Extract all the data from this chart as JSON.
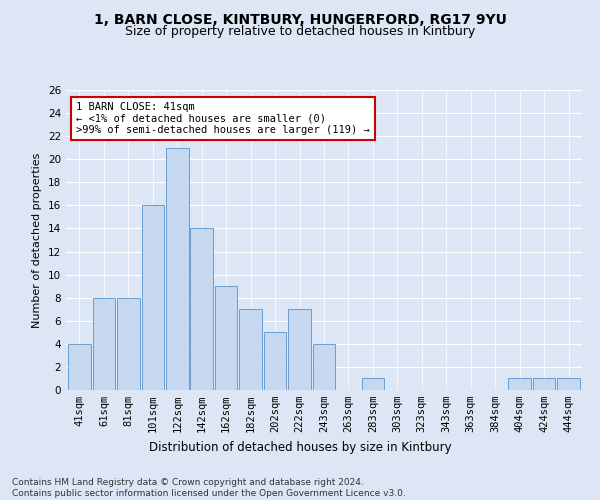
{
  "title1": "1, BARN CLOSE, KINTBURY, HUNGERFORD, RG17 9YU",
  "title2": "Size of property relative to detached houses in Kintbury",
  "xlabel": "Distribution of detached houses by size in Kintbury",
  "ylabel": "Number of detached properties",
  "categories": [
    "41sqm",
    "61sqm",
    "81sqm",
    "101sqm",
    "122sqm",
    "142sqm",
    "162sqm",
    "182sqm",
    "202sqm",
    "222sqm",
    "243sqm",
    "263sqm",
    "283sqm",
    "303sqm",
    "323sqm",
    "343sqm",
    "363sqm",
    "384sqm",
    "404sqm",
    "424sqm",
    "444sqm"
  ],
  "values": [
    4,
    8,
    8,
    16,
    21,
    14,
    9,
    7,
    5,
    7,
    4,
    0,
    1,
    0,
    0,
    0,
    0,
    0,
    1,
    1,
    1
  ],
  "bar_color": "#c5d8ef",
  "bar_edge_color": "#6a9fd0",
  "annotation_text": "1 BARN CLOSE: 41sqm\n← <1% of detached houses are smaller (0)\n>99% of semi-detached houses are larger (119) →",
  "annotation_box_color": "#ffffff",
  "annotation_box_edge": "#cc0000",
  "ylim": [
    0,
    26
  ],
  "yticks": [
    0,
    2,
    4,
    6,
    8,
    10,
    12,
    14,
    16,
    18,
    20,
    22,
    24,
    26
  ],
  "footer": "Contains HM Land Registry data © Crown copyright and database right 2024.\nContains public sector information licensed under the Open Government Licence v3.0.",
  "bg_color": "#dce6f5",
  "plot_bg_color": "#dce6f5",
  "grid_color": "#ffffff",
  "title1_fontsize": 10,
  "title2_fontsize": 9,
  "xlabel_fontsize": 8.5,
  "ylabel_fontsize": 8,
  "tick_fontsize": 7.5,
  "footer_fontsize": 6.5
}
